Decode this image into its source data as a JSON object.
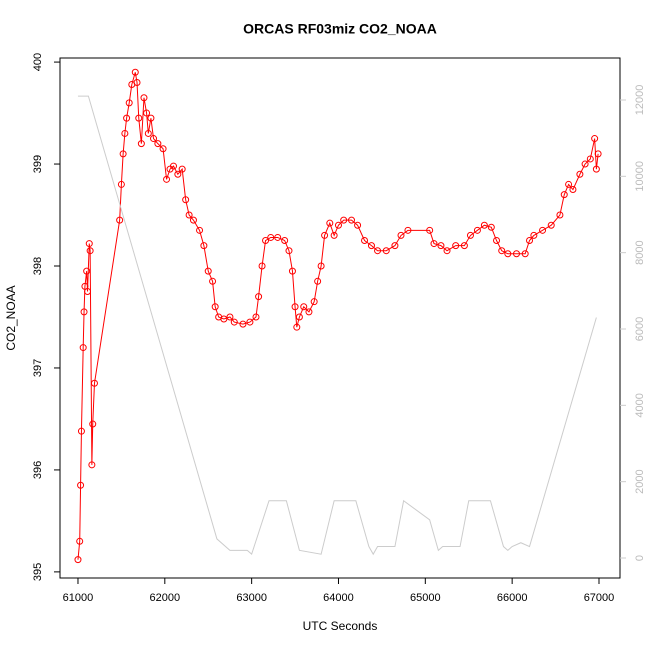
{
  "chart_data": {
    "type": "line",
    "title": "ORCAS RF03miz CO2_NOAA",
    "xlabel": "UTC Seconds",
    "ylabel": "CO2_NOAA",
    "xlim": [
      60793,
      67242
    ],
    "xticks": [
      61000,
      62000,
      63000,
      64000,
      65000,
      66000,
      67000
    ],
    "ylim": [
      394.94,
      400.04
    ],
    "yticks": [
      395,
      396,
      397,
      398,
      399,
      400
    ],
    "y2lim": [
      -524,
      13100
    ],
    "y2ticks": [
      0,
      2000,
      4000,
      6000,
      8000,
      10000,
      12000
    ],
    "series": [
      {
        "color": "#ff0000",
        "markers": true,
        "x": [
          61000,
          61020,
          61030,
          61040,
          61060,
          61070,
          61080,
          61100,
          61110,
          61130,
          61140,
          61160,
          61170,
          61190,
          61480,
          61500,
          61520,
          61540,
          61560,
          61590,
          61620,
          61660,
          61680,
          61700,
          61730,
          61760,
          61790,
          61810,
          61840,
          61870,
          61920,
          61980,
          62020,
          62060,
          62100,
          62150,
          62200,
          62240,
          62280,
          62330,
          62400,
          62450,
          62500,
          62550,
          62580,
          62620,
          62680,
          62750,
          62800,
          62900,
          62980,
          63050,
          63080,
          63120,
          63160,
          63220,
          63300,
          63380,
          63430,
          63470,
          63500,
          63520,
          63550,
          63600,
          63660,
          63720,
          63760,
          63800,
          63840,
          63900,
          63950,
          64000,
          64060,
          64150,
          64220,
          64300,
          64380,
          64450,
          64550,
          64650,
          64720,
          64800,
          65050,
          65100,
          65180,
          65250,
          65350,
          65450,
          65520,
          65600,
          65680,
          65760,
          65820,
          65880,
          65950,
          66050,
          66150,
          66200,
          66250,
          66350,
          66450,
          66550,
          66600,
          66650,
          66700,
          66780,
          66840,
          66900,
          66950,
          66970,
          66990
        ],
        "values": [
          395.12,
          395.3,
          395.85,
          396.38,
          397.2,
          397.55,
          397.8,
          397.95,
          397.75,
          398.22,
          398.15,
          396.05,
          396.45,
          396.85,
          398.45,
          398.8,
          399.1,
          399.3,
          399.45,
          399.6,
          399.78,
          399.9,
          399.8,
          399.45,
          399.2,
          399.65,
          399.5,
          399.3,
          399.45,
          399.25,
          399.2,
          399.15,
          398.85,
          398.95,
          398.98,
          398.9,
          398.95,
          398.65,
          398.5,
          398.45,
          398.35,
          398.2,
          397.95,
          397.85,
          397.6,
          397.5,
          397.48,
          397.5,
          397.45,
          397.43,
          397.45,
          397.5,
          397.7,
          398.0,
          398.25,
          398.28,
          398.28,
          398.25,
          398.15,
          397.95,
          397.6,
          397.4,
          397.5,
          397.6,
          397.55,
          397.65,
          397.85,
          398.0,
          398.3,
          398.42,
          398.3,
          398.4,
          398.45,
          398.45,
          398.4,
          398.25,
          398.2,
          398.15,
          398.15,
          398.2,
          398.3,
          398.35,
          398.35,
          398.22,
          398.2,
          398.15,
          398.2,
          398.2,
          398.3,
          398.35,
          398.4,
          398.38,
          398.25,
          398.15,
          398.12,
          398.12,
          398.12,
          398.25,
          398.3,
          398.35,
          398.4,
          398.5,
          398.7,
          398.8,
          398.75,
          398.9,
          399.0,
          399.05,
          399.25,
          398.95,
          399.1
        ]
      },
      {
        "color": "#cccccc",
        "axis": "y2",
        "markers": false,
        "x": [
          61000,
          61120,
          62600,
          62750,
          62950,
          63000,
          63200,
          63400,
          63550,
          63800,
          63950,
          64200,
          64350,
          64400,
          64450,
          64650,
          64750,
          65050,
          65150,
          65200,
          65400,
          65500,
          65750,
          65900,
          65950,
          66000,
          66100,
          66200,
          66970
        ],
        "values": [
          12100,
          12100,
          500,
          200,
          200,
          100,
          1500,
          1500,
          200,
          100,
          1500,
          1500,
          300,
          100,
          300,
          300,
          1500,
          1000,
          200,
          300,
          300,
          1500,
          1500,
          300,
          200,
          300,
          400,
          300,
          6300
        ]
      }
    ]
  }
}
